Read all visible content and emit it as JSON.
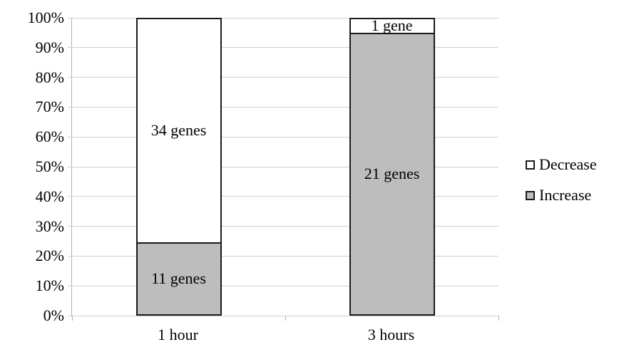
{
  "chart_data": {
    "type": "bar",
    "variant": "100%-stacked-column",
    "title": "",
    "xlabel": "",
    "ylabel": "",
    "categories": [
      "1 hour",
      "3 hours"
    ],
    "series": [
      {
        "name": "Decrease",
        "fill": "#FFFFFF",
        "values_genes": [
          34,
          1
        ],
        "segment_labels": [
          "34 genes",
          "1 gene"
        ]
      },
      {
        "name": "Increase",
        "fill": "#BDBDBD",
        "values_genes": [
          11,
          21
        ],
        "segment_labels": [
          "11 genes",
          "21 genes"
        ]
      }
    ],
    "percentages_by_category": [
      {
        "category": "1 hour",
        "Decrease": 75.6,
        "Increase": 24.4
      },
      {
        "category": "3 hours",
        "Decrease": 4.5,
        "Increase": 95.5
      }
    ],
    "y_ticks": [
      "0%",
      "10%",
      "20%",
      "30%",
      "40%",
      "50%",
      "60%",
      "70%",
      "80%",
      "90%",
      "100%"
    ],
    "ylim": [
      0,
      100
    ],
    "grid": true,
    "legend_position": "right",
    "legend_items": [
      "Decrease",
      "Increase"
    ],
    "colors": {
      "bar_border": "#1a1a1a",
      "gridline": "#cfcfcf",
      "axis": "#b0b0b0",
      "text": "#000000"
    }
  }
}
